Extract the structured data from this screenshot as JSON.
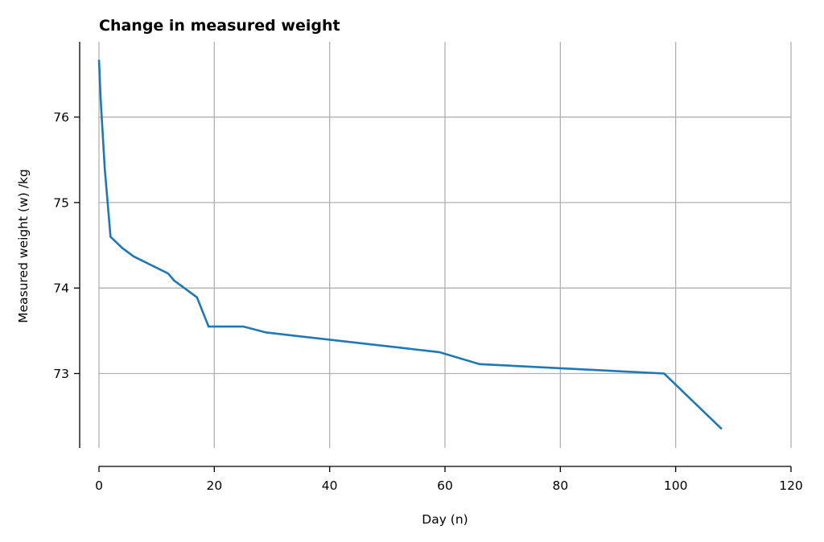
{
  "chart_data": {
    "type": "line",
    "title": "Change in measured weight",
    "xlabel": "Day (n)",
    "ylabel": "Measured weight (w) /kg",
    "xlim": [
      0,
      120
    ],
    "ylim": [
      72.13,
      76.88
    ],
    "xticks": [
      0,
      20,
      40,
      60,
      80,
      100,
      120
    ],
    "yticks": [
      73,
      74,
      75,
      76
    ],
    "grid": true,
    "color": "#1f77b4",
    "x": [
      0,
      0.3,
      1,
      2,
      4,
      6,
      12,
      13,
      17,
      19,
      25,
      29,
      59,
      66,
      98,
      108
    ],
    "y": [
      76.67,
      76.2,
      75.4,
      74.6,
      74.47,
      74.37,
      74.17,
      74.09,
      73.89,
      73.55,
      73.55,
      73.48,
      73.25,
      73.11,
      73.0,
      72.35
    ]
  }
}
